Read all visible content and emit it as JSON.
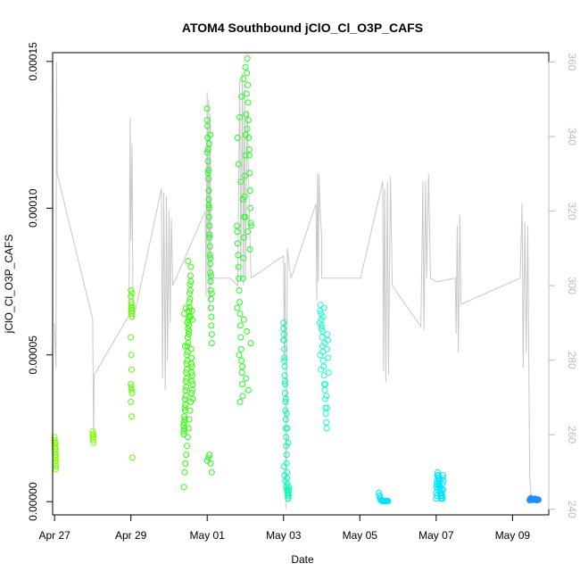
{
  "chart_data": {
    "type": "scatter",
    "title": "ATOM4 Southbound jClO_Cl_O3P_CAFS",
    "xlabel": "Date",
    "ylabel": "jClO_Cl_O3P_CAFS",
    "x_ticks": [
      "Apr 27",
      "Apr 29",
      "May 01",
      "May 03",
      "May 05",
      "May 07",
      "May 09"
    ],
    "y_ticks": [
      "0.00000",
      "0.00005",
      "0.00010",
      "0.00015"
    ],
    "y2_ticks": [
      "240",
      "260",
      "280",
      "300",
      "320",
      "340",
      "360"
    ],
    "xlim": [
      -0.05,
      12.95
    ],
    "ylim": [
      -4.5e-06,
      0.000153
    ],
    "y2lim": [
      238.5,
      362.5
    ],
    "grid": false,
    "background_line": {
      "color": "#c8c8c8",
      "points": [
        [
          0.0,
          290
        ],
        [
          0.02,
          283
        ],
        [
          0.04,
          278
        ],
        [
          0.05,
          360
        ],
        [
          0.07,
          330
        ],
        [
          1.0,
          291
        ],
        [
          1.02,
          259
        ],
        [
          1.04,
          276
        ],
        [
          1.95,
          292
        ],
        [
          1.98,
          345
        ],
        [
          2.0,
          312
        ],
        [
          2.03,
          338
        ],
        [
          2.05,
          301
        ],
        [
          2.07,
          291
        ],
        [
          2.8,
          326
        ],
        [
          2.83,
          275
        ],
        [
          2.86,
          325
        ],
        [
          2.9,
          272
        ],
        [
          2.93,
          324
        ],
        [
          2.96,
          280
        ],
        [
          3.0,
          320
        ],
        [
          3.03,
          290
        ],
        [
          3.06,
          318
        ],
        [
          3.1,
          300
        ],
        [
          3.95,
          320
        ],
        [
          3.97,
          297
        ],
        [
          4.0,
          352
        ],
        [
          4.02,
          301
        ],
        [
          4.04,
          350
        ],
        [
          4.06,
          293
        ],
        [
          4.08,
          346
        ],
        [
          4.1,
          300
        ],
        [
          4.12,
          302
        ],
        [
          4.4,
          302
        ],
        [
          4.6,
          302
        ],
        [
          4.8,
          300
        ],
        [
          4.85,
          355
        ],
        [
          4.88,
          302
        ],
        [
          4.92,
          357
        ],
        [
          4.95,
          300
        ],
        [
          4.98,
          354
        ],
        [
          5.0,
          302
        ],
        [
          5.05,
          347
        ],
        [
          5.1,
          320
        ],
        [
          5.15,
          302
        ],
        [
          6.0,
          308
        ],
        [
          6.02,
          280
        ],
        [
          6.04,
          306
        ],
        [
          6.06,
          240
        ],
        [
          6.08,
          258
        ],
        [
          6.1,
          310
        ],
        [
          6.15,
          305
        ],
        [
          6.2,
          302
        ],
        [
          6.85,
          322
        ],
        [
          6.87,
          296
        ],
        [
          6.89,
          330
        ],
        [
          6.91,
          301
        ],
        [
          6.93,
          330
        ],
        [
          6.96,
          320
        ],
        [
          7.0,
          313
        ],
        [
          7.0,
          302
        ],
        [
          8.0,
          302
        ],
        [
          8.02,
          302
        ],
        [
          8.6,
          328
        ],
        [
          8.62,
          277
        ],
        [
          8.65,
          326
        ],
        [
          8.68,
          274
        ],
        [
          8.72,
          328
        ],
        [
          8.75,
          276
        ],
        [
          8.8,
          329
        ],
        [
          8.85,
          300
        ],
        [
          9.6,
          289
        ],
        [
          9.65,
          328
        ],
        [
          9.68,
          288
        ],
        [
          9.72,
          328
        ],
        [
          9.75,
          302
        ],
        [
          9.8,
          330
        ],
        [
          9.85,
          302
        ],
        [
          10.0,
          301
        ],
        [
          10.5,
          302
        ],
        [
          10.52,
          287
        ],
        [
          10.55,
          316
        ],
        [
          10.58,
          282
        ],
        [
          10.62,
          319
        ],
        [
          10.65,
          295
        ],
        [
          12.2,
          302
        ],
        [
          12.25,
          322
        ],
        [
          12.28,
          278
        ],
        [
          12.32,
          317
        ],
        [
          12.36,
          282
        ],
        [
          12.4,
          316
        ],
        [
          12.45,
          249
        ],
        [
          12.5,
          242
        ]
      ]
    },
    "series": [
      {
        "color": "#80ff00",
        "x": [
          0.0,
          0.0,
          0.0,
          0.01,
          0.01,
          0.01,
          0.02,
          0.02,
          0.02,
          0.02,
          0.03,
          0.03,
          0.03,
          0.03,
          0.04,
          0.04,
          0.04,
          1.0,
          1.0,
          1.01,
          1.01,
          1.02,
          1.02,
          1.02
        ],
        "y": [
          2.2e-05,
          2.1e-05,
          2e-05,
          1.9e-05,
          1.8e-05,
          1.7e-05,
          1.6e-05,
          1.5e-05,
          1.4e-05,
          1.3e-05,
          1.2e-05,
          1.1e-05,
          2e-05,
          1.8e-05,
          1.6e-05,
          1.4e-05,
          1.2e-05,
          2.4e-05,
          2.3e-05,
          2.2e-05,
          2.1e-05,
          2e-05,
          2.2e-05,
          2.3e-05
        ]
      },
      {
        "color": "#5cff00",
        "x": [
          2.0,
          2.0,
          2.01,
          2.01,
          2.02,
          2.02,
          2.03,
          2.03,
          2.0,
          2.01,
          2.02,
          2.0,
          2.01,
          2.02,
          2.03,
          2.0,
          2.02,
          2.04,
          2.01,
          2.02,
          2.03
        ],
        "y": [
          7.2e-05,
          7e-05,
          6.8e-05,
          6.6e-05,
          6.5e-05,
          6.4e-05,
          6.3e-05,
          6.6e-05,
          5.6e-05,
          5e-05,
          4.5e-05,
          4e-05,
          3.9e-05,
          3.8e-05,
          3.7e-05,
          3.4e-05,
          2.9e-05,
          1.5e-05,
          6.5e-05,
          6.7e-05,
          7.1e-05
        ]
      },
      {
        "color": "#2eff00",
        "x": [
          3.38,
          3.38,
          3.39,
          3.39,
          3.4,
          3.4,
          3.41,
          3.41,
          3.42,
          3.42,
          3.43,
          3.43,
          3.44,
          3.44,
          3.45,
          3.45,
          3.46,
          3.46,
          3.47,
          3.47,
          3.48,
          3.48,
          3.49,
          3.49,
          3.5,
          3.5,
          3.51,
          3.51,
          3.52,
          3.52,
          3.53,
          3.53,
          3.54,
          3.54,
          3.55,
          3.55,
          3.56,
          3.56,
          3.57,
          3.57,
          3.58,
          3.58,
          3.59,
          3.59,
          3.6,
          3.6,
          3.61,
          3.61,
          3.62,
          3.62,
          3.39,
          3.41,
          3.43,
          3.45,
          3.47,
          3.49,
          3.51,
          3.53,
          3.55,
          3.57,
          3.59,
          3.61,
          3.4,
          3.44,
          3.48,
          3.52,
          3.56,
          3.6,
          3.42,
          3.5
        ],
        "y": [
          2.6e-05,
          2.4e-05,
          2.7e-05,
          2.3e-05,
          2.9e-05,
          2.5e-05,
          3.2e-05,
          2.8e-05,
          3.5e-05,
          3.1e-05,
          3.8e-05,
          3.3e-05,
          4.1e-05,
          3.6e-05,
          4.4e-05,
          3.9e-05,
          4.7e-05,
          4.2e-05,
          5e-05,
          4.5e-05,
          5.3e-05,
          4.8e-05,
          5.6e-05,
          5.1e-05,
          5.9e-05,
          5.4e-05,
          6.2e-05,
          5.7e-05,
          6.5e-05,
          6e-05,
          6.8e-05,
          6.3e-05,
          7.1e-05,
          6.6e-05,
          7.4e-05,
          6.9e-05,
          7.7e-05,
          7.2e-05,
          8e-05,
          7.5e-05,
          5.2e-05,
          4.7e-05,
          4.9e-05,
          4.4e-05,
          4.6e-05,
          4.1e-05,
          4.3e-05,
          3.8e-05,
          4e-05,
          3.5e-05,
          5e-06,
          1e-05,
          1.3e-05,
          1.6e-05,
          1.9e-05,
          2.2e-05,
          2.5e-05,
          2.8e-05,
          3.1e-05,
          3.4e-05,
          3.7e-05,
          6.2e-05,
          6.4e-05,
          6.6e-05,
          6.1e-05,
          5.8e-05,
          6.3e-05,
          6.5e-05,
          5.3e-05,
          8.2e-05
        ]
      },
      {
        "color": "#1eff1e",
        "x": [
          4.0,
          4.0,
          4.01,
          4.01,
          4.02,
          4.02,
          4.03,
          4.03,
          4.04,
          4.04,
          4.05,
          4.05,
          4.06,
          4.06,
          4.07,
          4.07,
          4.08,
          4.08,
          4.09,
          4.09,
          4.1,
          4.1,
          4.11,
          4.11,
          4.12,
          4.12,
          4.0,
          4.02,
          4.04,
          4.06,
          4.08,
          4.1,
          4.12,
          4.0,
          4.03,
          4.06,
          4.09,
          4.12,
          4.05,
          4.08
        ],
        "y": [
          0.000134,
          0.00013,
          0.000128,
          0.000124,
          0.00012,
          0.000116,
          0.000113,
          0.00011,
          0.000106,
          0.000103,
          0.0001,
          9.7e-05,
          9.4e-05,
          9e-05,
          8.7e-05,
          8.4e-05,
          8.1e-05,
          7.8e-05,
          7.5e-05,
          7.2e-05,
          6.9e-05,
          6.6e-05,
          6.3e-05,
          6e-05,
          5.7e-05,
          5.4e-05,
          0.000119,
          0.000112,
          0.000101,
          9.1e-05,
          8.3e-05,
          7.7e-05,
          7.1e-05,
          1.4e-05,
          1.5e-05,
          1.6e-05,
          1.3e-05,
          1e-05,
          0.000122,
          0.000125
        ]
      },
      {
        "color": "#1eff1e",
        "x": [
          4.78,
          4.79,
          4.8,
          4.81,
          4.82,
          4.83,
          4.84,
          4.85,
          4.86,
          4.87,
          4.88,
          4.89,
          4.9,
          4.91,
          4.92,
          4.93,
          4.94,
          4.95,
          4.96,
          4.97,
          4.98,
          4.99,
          5.0,
          5.01,
          5.02,
          5.03,
          5.04,
          5.05,
          5.06,
          5.07,
          5.08,
          5.09,
          5.1,
          5.11,
          5.12,
          5.13,
          5.14,
          5.15,
          4.8,
          4.85,
          4.9,
          4.95,
          5.0,
          5.05,
          5.1,
          4.82,
          4.88,
          4.94,
          5.0,
          5.06,
          5.12,
          4.84,
          4.92,
          5.02,
          5.08,
          4.86,
          4.96,
          5.04,
          5.14,
          4.79
        ],
        "y": [
          9.4e-05,
          9.2e-05,
          8.8e-05,
          8.4e-05,
          8e-05,
          7.6e-05,
          7.2e-05,
          6.8e-05,
          6.4e-05,
          6e-05,
          5.6e-05,
          5.2e-05,
          4.8e-05,
          4.4e-05,
          4e-05,
          3.6e-05,
          7.6e-05,
          8.3e-05,
          9e-05,
          9.7e-05,
          0.000104,
          0.000111,
          0.000118,
          0.000125,
          0.000132,
          0.000139,
          0.000146,
          0.000151,
          0.000142,
          0.000136,
          0.00013,
          0.000124,
          0.000118,
          0.000112,
          0.000106,
          0.0001,
          9.5e-05,
          9.4e-05,
          0.000124,
          0.000131,
          0.000138,
          0.000144,
          0.000148,
          0.000127,
          0.00012,
          0.000115,
          0.000109,
          0.000103,
          9.7e-05,
          9.2e-05,
          8.6e-05,
          5e-05,
          4.6e-05,
          4.2e-05,
          3.8e-05,
          3.4e-05,
          6.2e-05,
          5.8e-05,
          5.4e-05,
          6.6e-05
        ]
      },
      {
        "color": "#00ffb4",
        "x": [
          6.0,
          6.0,
          6.01,
          6.01,
          6.02,
          6.02,
          6.03,
          6.03,
          6.04,
          6.04,
          6.05,
          6.05,
          6.06,
          6.06,
          6.07,
          6.07,
          6.08,
          6.08,
          6.09,
          6.09,
          6.1,
          6.1,
          6.11,
          6.11,
          6.12,
          6.12,
          6.13,
          6.13,
          6.14,
          6.14,
          6.0,
          6.02,
          6.04,
          6.06,
          6.08,
          6.1,
          6.12,
          6.01,
          6.03,
          6.05,
          6.07,
          6.09,
          6.11,
          6.13
        ],
        "y": [
          6.1e-05,
          5.9e-05,
          5.7e-05,
          5.5e-05,
          5.2e-05,
          4.9e-05,
          4.6e-05,
          4.3e-05,
          4e-05,
          3.7e-05,
          3.4e-05,
          3.1e-05,
          2.8e-05,
          2.5e-05,
          2.2e-05,
          1.9e-05,
          1.6e-05,
          1.3e-05,
          1e-05,
          8e-06,
          6e-06,
          4e-06,
          3e-06,
          2e-06,
          1e-06,
          1e-06,
          2e-06,
          3e-06,
          4e-06,
          5e-06,
          5.5e-05,
          4.8e-05,
          4.1e-05,
          3.5e-05,
          3e-05,
          2.5e-05,
          2e-05,
          1.2e-05,
          9e-06,
          7e-06,
          5e-06,
          4e-06,
          3e-06,
          2e-06
        ]
      },
      {
        "color": "#19ffc8",
        "x": [
          6.95,
          6.96,
          6.97,
          6.98,
          6.99,
          7.0,
          7.01,
          7.02,
          7.03,
          7.04,
          7.05,
          7.06,
          7.07,
          7.08,
          7.09,
          7.1,
          7.11,
          7.12,
          7.13,
          7.14,
          7.15,
          7.16,
          7.17,
          7.18,
          6.96,
          6.98,
          7.0,
          7.02,
          7.04,
          7.06,
          7.08,
          7.1,
          7.12,
          7.14
        ],
        "y": [
          6.1e-05,
          6.5e-05,
          6.7e-05,
          6.4e-05,
          6.2e-05,
          5.9e-05,
          5.6e-05,
          5.3e-05,
          5.1e-05,
          4.8e-05,
          4.6e-05,
          4.3e-05,
          4e-05,
          3.8e-05,
          3.5e-05,
          3.2e-05,
          3e-05,
          2.7e-05,
          2.5e-05,
          5.2e-05,
          5.7e-05,
          5.5e-05,
          4.9e-05,
          4.4e-05,
          5e-05,
          4.5e-05,
          6e-05,
          5.8e-05,
          6.3e-05,
          6.6e-05,
          5.4e-05,
          4e-05,
          3.6e-05,
          3.2e-05
        ]
      },
      {
        "color": "#00e5ff",
        "x": [
          8.5,
          8.51,
          8.52,
          8.53,
          8.54,
          8.55,
          8.56,
          8.57,
          8.58,
          8.59,
          8.6,
          8.61,
          8.62,
          8.63,
          8.64,
          8.65,
          8.66,
          8.67,
          8.68,
          8.69,
          8.7,
          8.71,
          8.72,
          8.73,
          8.74
        ],
        "y": [
          3e-06,
          2e-06,
          2e-06,
          1e-06,
          1e-06,
          5e-07,
          5e-07,
          3e-07,
          3e-07,
          2e-07,
          2e-07,
          2e-07,
          2e-07,
          2e-07,
          2e-07,
          2e-07,
          2e-07,
          2e-07,
          2e-07,
          2e-07,
          2e-07,
          2e-07,
          2e-07,
          2e-07,
          2e-07
        ]
      },
      {
        "color": "#00e5ff",
        "x": [
          10.0,
          10.01,
          10.02,
          10.03,
          10.04,
          10.05,
          10.06,
          10.07,
          10.08,
          10.09,
          10.1,
          10.11,
          10.12,
          10.13,
          10.14,
          10.15,
          10.16,
          10.17,
          10.18,
          10.19,
          10.0,
          10.02,
          10.04,
          10.06,
          10.08,
          10.1,
          10.12,
          10.14,
          10.16,
          10.18,
          10.01,
          10.05,
          10.09,
          10.13,
          10.17
        ],
        "y": [
          3e-06,
          5e-06,
          7e-06,
          9e-06,
          1e-05,
          9e-06,
          8e-06,
          7e-06,
          6e-06,
          5e-06,
          4e-06,
          3e-06,
          2e-06,
          1e-06,
          2e-06,
          4e-06,
          6e-06,
          8e-06,
          9e-06,
          7e-06,
          1e-06,
          2e-06,
          4e-06,
          6e-06,
          8e-06,
          5e-06,
          3e-06,
          1e-06,
          2e-06,
          4e-06,
          6e-06,
          8e-06,
          5e-06,
          3e-06,
          1e-06
        ]
      },
      {
        "color": "#1e90ff",
        "x": [
          12.45,
          12.46,
          12.47,
          12.48,
          12.49,
          12.5,
          12.51,
          12.52,
          12.53,
          12.54,
          12.55,
          12.56,
          12.57,
          12.58,
          12.59,
          12.6,
          12.61,
          12.62,
          12.63,
          12.64,
          12.65,
          12.66,
          12.67,
          12.68
        ],
        "y": [
          5e-07,
          8e-07,
          1e-06,
          1.2e-06,
          1.1e-06,
          9e-07,
          8e-07,
          7e-07,
          6e-07,
          6e-07,
          7e-07,
          8e-07,
          9e-07,
          1e-06,
          9e-07,
          8e-07,
          7e-07,
          6e-07,
          5e-07,
          6e-07,
          7e-07,
          8e-07,
          7e-07,
          6e-07
        ]
      }
    ]
  }
}
